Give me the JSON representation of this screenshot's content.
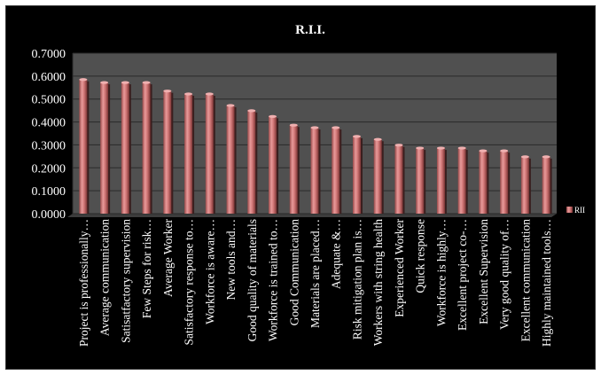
{
  "chart_data": {
    "type": "bar",
    "title": "R.I.I.",
    "xlabel": "",
    "ylabel": "",
    "ylim": [
      0,
      0.7
    ],
    "yticks": [
      "0.0000",
      "0.1000",
      "0.2000",
      "0.3000",
      "0.4000",
      "0.5000",
      "0.6000",
      "0.7000"
    ],
    "grid": true,
    "legend_position": "right",
    "categories": [
      "Project is professionally…",
      "Average communication",
      "Satisatfactory supervision",
      "Few Steps for risk…",
      "Average Worker",
      "Satisfactory response to…",
      "Workforce is aware…",
      "New tools and…",
      "Good quality of materials",
      "Workforce is trained to…",
      "Good Communication",
      "Materials are placed…",
      "Adequate &…",
      "Risk mitigation plan is…",
      "Workers with string health",
      "Experienced Worker",
      "Quick response",
      "Workforce is highly…",
      "Excellent project co-…",
      "Excellent Supervision",
      "Very good quality of…",
      "Excellent communication",
      "Highly maintained tools…"
    ],
    "series": [
      {
        "name": "RII",
        "values": [
          0.585,
          0.572,
          0.572,
          0.572,
          0.535,
          0.522,
          0.522,
          0.472,
          0.449,
          0.424,
          0.386,
          0.375,
          0.375,
          0.337,
          0.324,
          0.299,
          0.286,
          0.286,
          0.286,
          0.274,
          0.274,
          0.248,
          0.248
        ]
      }
    ]
  },
  "colors": {
    "background": "#000000",
    "plot_area": "#505050",
    "bar_fill": "#d97a7a",
    "bar_dark": "#8c3f3f",
    "text": "#ffffff",
    "gridline": "#2a2a2a"
  }
}
